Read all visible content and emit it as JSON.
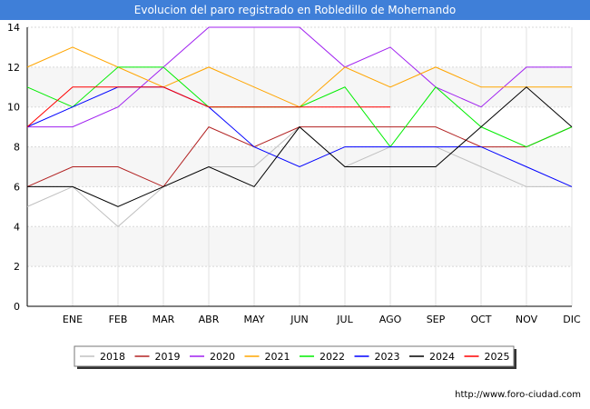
{
  "title": "Evolucion del paro registrado en Robledillo de Mohernando",
  "footer": "http://www.foro-ciudad.com",
  "chart_data": {
    "type": "line",
    "title": "Evolucion del paro registrado en Robledillo de Mohernando",
    "xlabel": "",
    "ylabel": "",
    "x_ticks": [
      "",
      "ENE",
      "FEB",
      "MAR",
      "ABR",
      "MAY",
      "JUN",
      "JUL",
      "AGO",
      "SEP",
      "OCT",
      "NOV",
      "DIC"
    ],
    "ylim": [
      0,
      14
    ],
    "y_ticks": [
      0,
      2,
      4,
      6,
      8,
      10,
      12,
      14
    ],
    "grid": true,
    "legend_placement": "bottom",
    "series": [
      {
        "name": "2018",
        "color": "#c0c0c0",
        "values": [
          5,
          6,
          4,
          6,
          7,
          7,
          9,
          7,
          8,
          8,
          7,
          6,
          6
        ]
      },
      {
        "name": "2019",
        "color": "#b22222",
        "values": [
          6,
          7,
          7,
          6,
          9,
          8,
          9,
          9,
          9,
          9,
          8,
          8,
          9
        ]
      },
      {
        "name": "2020",
        "color": "#a020f0",
        "values": [
          9,
          9,
          10,
          12,
          14,
          14,
          14,
          12,
          13,
          11,
          10,
          12,
          12
        ]
      },
      {
        "name": "2021",
        "color": "#ffa500",
        "values": [
          12,
          13,
          12,
          11,
          12,
          11,
          10,
          12,
          11,
          12,
          11,
          11,
          11
        ]
      },
      {
        "name": "2022",
        "color": "#00ee00",
        "values": [
          11,
          10,
          12,
          12,
          10,
          10,
          10,
          11,
          8,
          11,
          9,
          8,
          9
        ]
      },
      {
        "name": "2023",
        "color": "#0000ff",
        "values": [
          9,
          10,
          11,
          11,
          10,
          8,
          7,
          8,
          8,
          8,
          8,
          7,
          6
        ]
      },
      {
        "name": "2024",
        "color": "#000000",
        "values": [
          6,
          6,
          5,
          6,
          7,
          6,
          9,
          7,
          7,
          7,
          9,
          11,
          9
        ]
      },
      {
        "name": "2025",
        "color": "#ff0000",
        "values": [
          9,
          11,
          11,
          11,
          10,
          10,
          10,
          10,
          10
        ]
      }
    ]
  }
}
